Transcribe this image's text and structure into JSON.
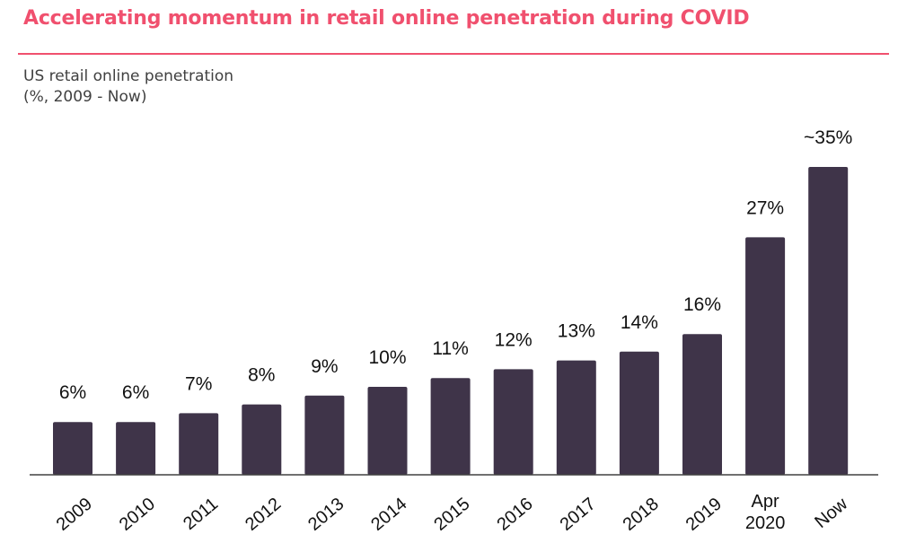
{
  "title": "Accelerating momentum in retail online penetration during COVID",
  "subtitle": {
    "line1": "US retail online penetration",
    "line2": "(%, 2009 - Now)"
  },
  "colors": {
    "title": "#f0506e",
    "bar": "#3f3449",
    "axis": "#404040",
    "text": "#111111"
  },
  "chart_data": {
    "type": "bar",
    "categories": [
      "2009",
      "2010",
      "2011",
      "2012",
      "2013",
      "2014",
      "2015",
      "2016",
      "2017",
      "2018",
      "2019",
      "Apr 2020",
      "Now"
    ],
    "values": [
      6,
      6,
      7,
      8,
      9,
      10,
      11,
      12,
      13,
      14,
      16,
      27,
      35
    ],
    "data_labels": [
      "6%",
      "6%",
      "7%",
      "8%",
      "9%",
      "10%",
      "11%",
      "12%",
      "13%",
      "14%",
      "16%",
      "27%",
      "~35%"
    ],
    "title": "US retail online penetration",
    "xlabel": "",
    "ylabel": "",
    "ylim": [
      0,
      40
    ],
    "grid": false,
    "legend": "none"
  }
}
